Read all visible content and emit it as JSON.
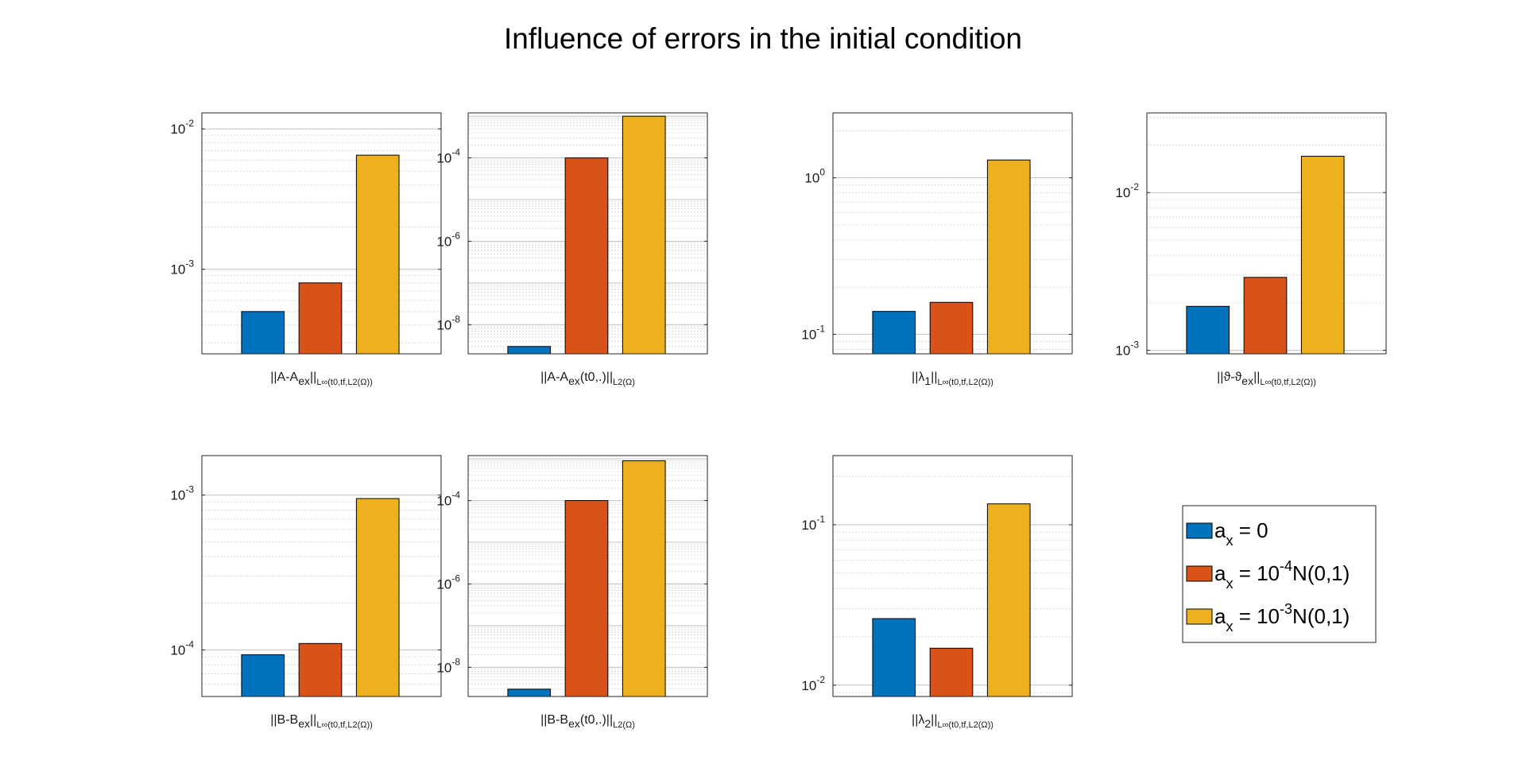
{
  "figure": {
    "title": "Influence of errors in the initial condition"
  },
  "colors": {
    "series": [
      "#0072BD",
      "#D95319",
      "#EDB120"
    ],
    "grid_minor": "#d9d9d9",
    "grid_major": "#c0c0c0",
    "axis": "#262626"
  },
  "chart_data": [
    {
      "type": "bar",
      "scale": "log",
      "ylim": [
        0.00025,
        0.013
      ],
      "xlabel_main": "||A-A",
      "xlabel_sub": "ex",
      "xlabel_close": "||",
      "xlabel_norm": "L∞(t0,tf,L2(Ω))",
      "ytick_exps": [
        -3,
        -2
      ],
      "values": [
        0.0005,
        0.0008,
        0.0065
      ]
    },
    {
      "type": "bar",
      "scale": "log",
      "ylim": [
        2e-09,
        0.0012
      ],
      "xlabel_main": "||A-A",
      "xlabel_sub": "ex",
      "xlabel_close": "(t0,.)||",
      "xlabel_norm": "L2(Ω)",
      "ytick_exps": [
        -8,
        -6,
        -4
      ],
      "values": [
        3e-09,
        0.0001,
        0.001
      ]
    },
    {
      "type": "bar",
      "scale": "log",
      "ylim": [
        0.075,
        2.6
      ],
      "xlabel_main": "||λ",
      "xlabel_sub": "1",
      "xlabel_close": "||",
      "xlabel_norm": "L∞(t0,tf,L2(Ω))",
      "ytick_exps": [
        -1,
        0
      ],
      "values": [
        0.14,
        0.16,
        1.3
      ]
    },
    {
      "type": "bar",
      "scale": "log",
      "ylim": [
        0.00095,
        0.032
      ],
      "xlabel_main": "||ϑ-ϑ",
      "xlabel_sub": "ex",
      "xlabel_close": "||",
      "xlabel_norm": "L∞(t0,tf,L2(Ω))",
      "ytick_exps": [
        -3,
        -2
      ],
      "values": [
        0.0019,
        0.0029,
        0.017
      ]
    },
    {
      "type": "bar",
      "scale": "log",
      "ylim": [
        5e-05,
        0.0018
      ],
      "xlabel_main": "||B-B",
      "xlabel_sub": "ex",
      "xlabel_close": "||",
      "xlabel_norm": "L∞(t0,tf,L2(Ω))",
      "ytick_exps": [
        -4,
        -3
      ],
      "values": [
        9.3e-05,
        0.00011,
        0.00095
      ]
    },
    {
      "type": "bar",
      "scale": "log",
      "ylim": [
        2e-09,
        0.0012
      ],
      "xlabel_main": "||B-B",
      "xlabel_sub": "ex",
      "xlabel_close": "(t0,.)||",
      "xlabel_norm": "L2(Ω)",
      "ytick_exps": [
        -8,
        -6,
        -4
      ],
      "values": [
        3e-09,
        0.0001,
        0.0009
      ]
    },
    {
      "type": "bar",
      "scale": "log",
      "ylim": [
        0.0085,
        0.27
      ],
      "xlabel_main": "||λ",
      "xlabel_sub": "2",
      "xlabel_close": "||",
      "xlabel_norm": "L∞(t0,tf,L2(Ω))",
      "ytick_exps": [
        -2,
        -1
      ],
      "values": [
        0.026,
        0.017,
        0.135
      ]
    }
  ],
  "legend": {
    "entries": [
      {
        "main": "a",
        "sub": "x",
        "rest": " = 0",
        "exp": "",
        "tail": ""
      },
      {
        "main": "a",
        "sub": "x",
        "rest": " = 10",
        "exp": "-4",
        "tail": "N(0,1)"
      },
      {
        "main": "a",
        "sub": "x",
        "rest": " = 10",
        "exp": "-3",
        "tail": "N(0,1)"
      }
    ]
  }
}
